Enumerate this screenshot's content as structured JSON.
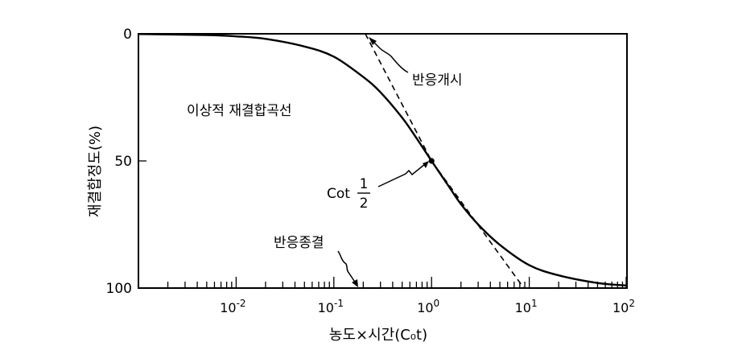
{
  "chart_data": {
    "type": "line",
    "title": "",
    "xlabel": "농도×시간(C₀t)",
    "ylabel": "재결합정도(%)",
    "x_scale": "log",
    "xlim": [
      0.001,
      100
    ],
    "ylim": [
      0,
      100
    ],
    "y_inverted": true,
    "grid": false,
    "x_ticks": [
      {
        "value": 0.01,
        "base": "10",
        "exp": "-2"
      },
      {
        "value": 0.1,
        "base": "10",
        "exp": "-1"
      },
      {
        "value": 1,
        "base": "10",
        "exp": "0"
      },
      {
        "value": 10,
        "base": "10",
        "exp": "1"
      },
      {
        "value": 100,
        "base": "10",
        "exp": "2"
      }
    ],
    "y_ticks": [
      {
        "value": 0,
        "label": "0"
      },
      {
        "value": 50,
        "label": "50"
      },
      {
        "value": 100,
        "label": "100"
      }
    ],
    "series": [
      {
        "style": "solid",
        "x": [
          0.001,
          0.005,
          0.01,
          0.02,
          0.05,
          0.1,
          0.2,
          0.3,
          0.5,
          0.7,
          1,
          1.5,
          2,
          3,
          5,
          10,
          20,
          50,
          100
        ],
        "y": [
          0.1,
          0.5,
          1,
          2,
          5,
          9,
          17,
          23,
          33,
          41,
          50,
          60,
          67,
          75,
          83,
          91,
          95,
          98,
          99
        ]
      },
      {
        "style": "dashed",
        "x": [
          0.21,
          1,
          8.8
        ],
        "y": [
          0,
          50,
          100
        ]
      }
    ],
    "points": [
      {
        "x": 1,
        "y": 50
      }
    ],
    "annotations": [
      {
        "id": "start",
        "text": "반응개시"
      },
      {
        "id": "end",
        "text": "반응종결"
      },
      {
        "id": "curve",
        "text": "이상적 재결합곡선"
      },
      {
        "id": "cot",
        "prefix": "Cot",
        "numerator": "1",
        "denominator": "2"
      }
    ]
  }
}
